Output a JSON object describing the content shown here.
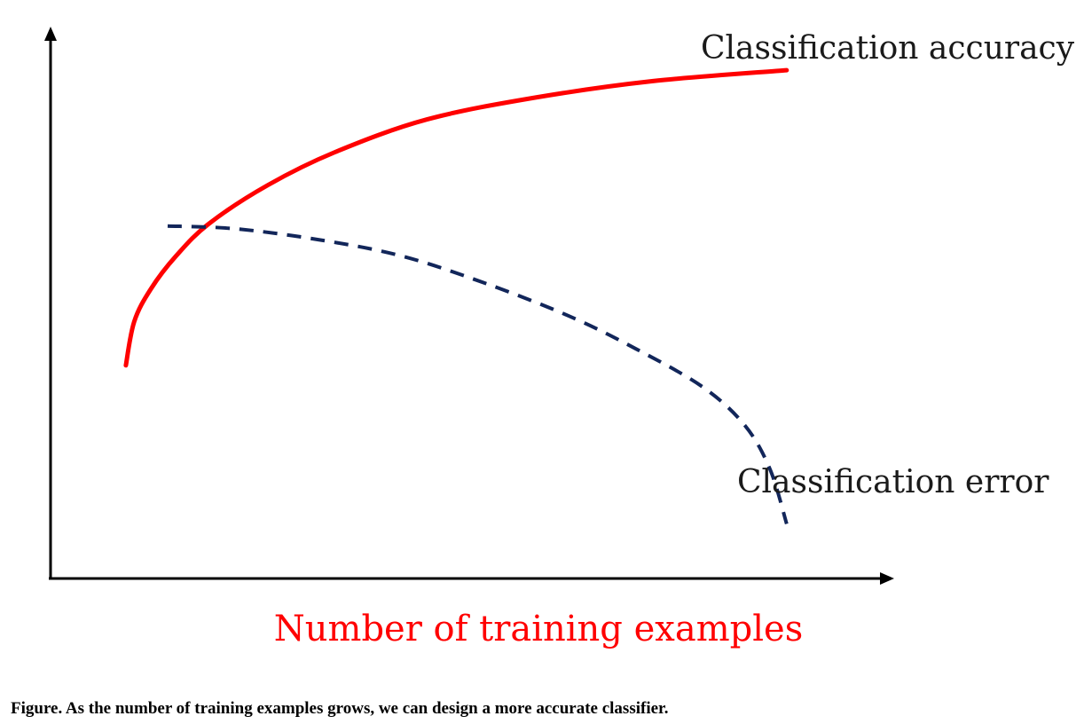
{
  "chart_data": {
    "type": "line",
    "title": "",
    "xlabel": "Number of training examples",
    "ylabel": "",
    "x_ticks_shown": false,
    "y_ticks_shown": false,
    "grid": false,
    "xlim": [
      0,
      100
    ],
    "ylim": [
      0,
      100
    ],
    "series": [
      {
        "name": "Classification accuracy",
        "line_style": "solid",
        "color": "#ff0000",
        "points": [
          [
            9,
            39
          ],
          [
            10,
            47
          ],
          [
            12,
            53
          ],
          [
            15,
            59
          ],
          [
            19,
            65
          ],
          [
            26,
            72
          ],
          [
            34,
            78
          ],
          [
            45,
            84
          ],
          [
            58,
            88
          ],
          [
            72,
            91
          ],
          [
            88,
            93
          ]
        ]
      },
      {
        "name": "Classification error",
        "line_style": "dashed",
        "color": "#12265a",
        "points": [
          [
            14,
            64.5
          ],
          [
            22,
            64
          ],
          [
            32,
            62
          ],
          [
            42,
            59
          ],
          [
            52,
            54
          ],
          [
            62,
            48
          ],
          [
            70,
            42
          ],
          [
            78,
            35
          ],
          [
            83,
            28
          ],
          [
            86,
            20
          ],
          [
            88,
            10
          ]
        ]
      }
    ],
    "axis_label_color": "#ff0000"
  },
  "caption": "Figure. As the number of training examples grows, we can design a more accurate classifier."
}
